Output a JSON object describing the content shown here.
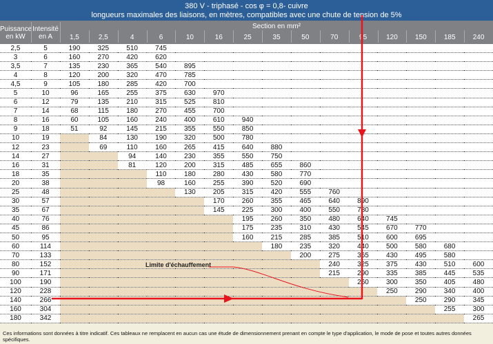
{
  "header": {
    "line1": "380 V - triphasé - cos φ  = 0,8- cuivre",
    "line2": "longueurs maximales des liaisons, en mètres, compatibles avec une chute de tension de 5%"
  },
  "columns": {
    "power": "Puissance en kW",
    "current": "Intensité en A",
    "section_title": "Section en mm²",
    "sections": [
      "1,5",
      "2,5",
      "4",
      "6",
      "10",
      "16",
      "25",
      "35",
      "50",
      "70",
      "95",
      "120",
      "150",
      "185",
      "240"
    ]
  },
  "rows": [
    {
      "kw": "2,5",
      "a": "5",
      "v": [
        "190",
        "325",
        "510",
        "745",
        null,
        null,
        null,
        null,
        null,
        null,
        null,
        null,
        null,
        null,
        null
      ],
      "shade": 0
    },
    {
      "kw": "3",
      "a": "6",
      "v": [
        "160",
        "270",
        "420",
        "620",
        null,
        null,
        null,
        null,
        null,
        null,
        null,
        null,
        null,
        null,
        null
      ],
      "shade": 0
    },
    {
      "kw": "3,5",
      "a": "7",
      "v": [
        "135",
        "230",
        "365",
        "540",
        "895",
        null,
        null,
        null,
        null,
        null,
        null,
        null,
        null,
        null,
        null
      ],
      "shade": 0
    },
    {
      "kw": "4",
      "a": "8",
      "v": [
        "120",
        "200",
        "320",
        "470",
        "785",
        null,
        null,
        null,
        null,
        null,
        null,
        null,
        null,
        null,
        null
      ],
      "shade": 0
    },
    {
      "kw": "4,5",
      "a": "9",
      "v": [
        "105",
        "180",
        "285",
        "420",
        "700",
        null,
        null,
        null,
        null,
        null,
        null,
        null,
        null,
        null,
        null
      ],
      "shade": 0
    },
    {
      "kw": "5",
      "a": "10",
      "v": [
        "96",
        "165",
        "255",
        "375",
        "630",
        "970",
        null,
        null,
        null,
        null,
        null,
        null,
        null,
        null,
        null
      ],
      "shade": 0
    },
    {
      "kw": "6",
      "a": "12",
      "v": [
        "79",
        "135",
        "210",
        "315",
        "525",
        "810",
        null,
        null,
        null,
        null,
        null,
        null,
        null,
        null,
        null
      ],
      "shade": 0
    },
    {
      "kw": "7",
      "a": "14",
      "v": [
        "68",
        "115",
        "180",
        "270",
        "455",
        "700",
        null,
        null,
        null,
        null,
        null,
        null,
        null,
        null,
        null
      ],
      "shade": 0
    },
    {
      "kw": "8",
      "a": "16",
      "v": [
        "60",
        "105",
        "160",
        "240",
        "400",
        "610",
        "940",
        null,
        null,
        null,
        null,
        null,
        null,
        null,
        null
      ],
      "shade": 0
    },
    {
      "kw": "9",
      "a": "18",
      "v": [
        "51",
        "92",
        "145",
        "215",
        "355",
        "550",
        "850",
        null,
        null,
        null,
        null,
        null,
        null,
        null,
        null
      ],
      "shade": 0
    },
    {
      "kw": "10",
      "a": "19",
      "v": [
        null,
        "84",
        "130",
        "190",
        "320",
        "500",
        "780",
        null,
        null,
        null,
        null,
        null,
        null,
        null,
        null
      ],
      "shade": 1
    },
    {
      "kw": "12",
      "a": "23",
      "v": [
        null,
        "69",
        "110",
        "160",
        "265",
        "415",
        "640",
        "880",
        null,
        null,
        null,
        null,
        null,
        null,
        null
      ],
      "shade": 1
    },
    {
      "kw": "14",
      "a": "27",
      "v": [
        null,
        null,
        "94",
        "140",
        "230",
        "355",
        "550",
        "750",
        null,
        null,
        null,
        null,
        null,
        null,
        null
      ],
      "shade": 2
    },
    {
      "kw": "16",
      "a": "31",
      "v": [
        null,
        null,
        "81",
        "120",
        "200",
        "315",
        "485",
        "655",
        "860",
        null,
        null,
        null,
        null,
        null,
        null
      ],
      "shade": 2
    },
    {
      "kw": "18",
      "a": "35",
      "v": [
        null,
        null,
        null,
        "110",
        "180",
        "280",
        "430",
        "580",
        "770",
        null,
        null,
        null,
        null,
        null,
        null
      ],
      "shade": 3
    },
    {
      "kw": "20",
      "a": "38",
      "v": [
        null,
        null,
        null,
        "98",
        "160",
        "255",
        "390",
        "520",
        "690",
        null,
        null,
        null,
        null,
        null,
        null
      ],
      "shade": 3
    },
    {
      "kw": "25",
      "a": "48",
      "v": [
        null,
        null,
        null,
        null,
        "130",
        "205",
        "315",
        "420",
        "555",
        "760",
        null,
        null,
        null,
        null,
        null
      ],
      "shade": 4
    },
    {
      "kw": "30",
      "a": "57",
      "v": [
        null,
        null,
        null,
        null,
        null,
        "170",
        "260",
        "355",
        "465",
        "640",
        "890",
        null,
        null,
        null,
        null
      ],
      "shade": 5
    },
    {
      "kw": "35",
      "a": "67",
      "v": [
        null,
        null,
        null,
        null,
        null,
        "145",
        "225",
        "300",
        "400",
        "550",
        "780",
        null,
        null,
        null,
        null
      ],
      "shade": 5
    },
    {
      "kw": "40",
      "a": "76",
      "v": [
        null,
        null,
        null,
        null,
        null,
        null,
        "195",
        "260",
        "350",
        "480",
        "640",
        "745",
        null,
        null,
        null
      ],
      "shade": 6
    },
    {
      "kw": "45",
      "a": "86",
      "v": [
        null,
        null,
        null,
        null,
        null,
        null,
        "175",
        "235",
        "310",
        "430",
        "545",
        "670",
        "770",
        null,
        null
      ],
      "shade": 6
    },
    {
      "kw": "50",
      "a": "95",
      "v": [
        null,
        null,
        null,
        null,
        null,
        null,
        "160",
        "215",
        "285",
        "385",
        "510",
        "600",
        "695",
        null,
        null
      ],
      "shade": 6
    },
    {
      "kw": "60",
      "a": "114",
      "v": [
        null,
        null,
        null,
        null,
        null,
        null,
        null,
        "180",
        "235",
        "320",
        "440",
        "500",
        "580",
        "680",
        null
      ],
      "shade": 7
    },
    {
      "kw": "70",
      "a": "133",
      "v": [
        null,
        null,
        null,
        null,
        null,
        null,
        null,
        null,
        "200",
        "275",
        "365",
        "430",
        "495",
        "580",
        null
      ],
      "shade": 8
    },
    {
      "kw": "80",
      "a": "152",
      "v": [
        null,
        null,
        null,
        null,
        null,
        null,
        null,
        null,
        null,
        "240",
        "325",
        "375",
        "430",
        "510",
        "600"
      ],
      "shade": 9
    },
    {
      "kw": "90",
      "a": "171",
      "v": [
        null,
        null,
        null,
        null,
        null,
        null,
        null,
        null,
        null,
        "215",
        "290",
        "335",
        "385",
        "445",
        "535"
      ],
      "shade": 9
    },
    {
      "kw": "100",
      "a": "190",
      "v": [
        null,
        null,
        null,
        null,
        null,
        null,
        null,
        null,
        null,
        null,
        "260",
        "300",
        "350",
        "405",
        "480"
      ],
      "shade": 10
    },
    {
      "kw": "120",
      "a": "228",
      "v": [
        null,
        null,
        null,
        null,
        null,
        null,
        null,
        null,
        null,
        null,
        null,
        "250",
        "290",
        "340",
        "400"
      ],
      "shade": 11
    },
    {
      "kw": "140",
      "a": "266",
      "v": [
        null,
        null,
        null,
        null,
        null,
        null,
        null,
        null,
        null,
        null,
        null,
        null,
        "250",
        "290",
        "345"
      ],
      "shade": 12
    },
    {
      "kw": "160",
      "a": "304",
      "v": [
        null,
        null,
        null,
        null,
        null,
        null,
        null,
        null,
        null,
        null,
        null,
        null,
        null,
        "255",
        "300"
      ],
      "shade": 13
    },
    {
      "kw": "180",
      "a": "342",
      "v": [
        null,
        null,
        null,
        null,
        null,
        null,
        null,
        null,
        null,
        null,
        null,
        null,
        null,
        null,
        "265"
      ],
      "shade": 14
    }
  ],
  "annotation": "Limite d'échauffement",
  "footnote": "Ces informations sont données à titre indicatif. Ces tableaux ne remplacent en aucun cas une étude de dimensionnement prenant en compte le type d'application, le mode de pose et toutes autres données spécifiques.",
  "colors": {
    "header": "#2c5f98",
    "subheader": "#7f8184",
    "shade": "#ecdcc2",
    "arrow": "#e8141c"
  }
}
